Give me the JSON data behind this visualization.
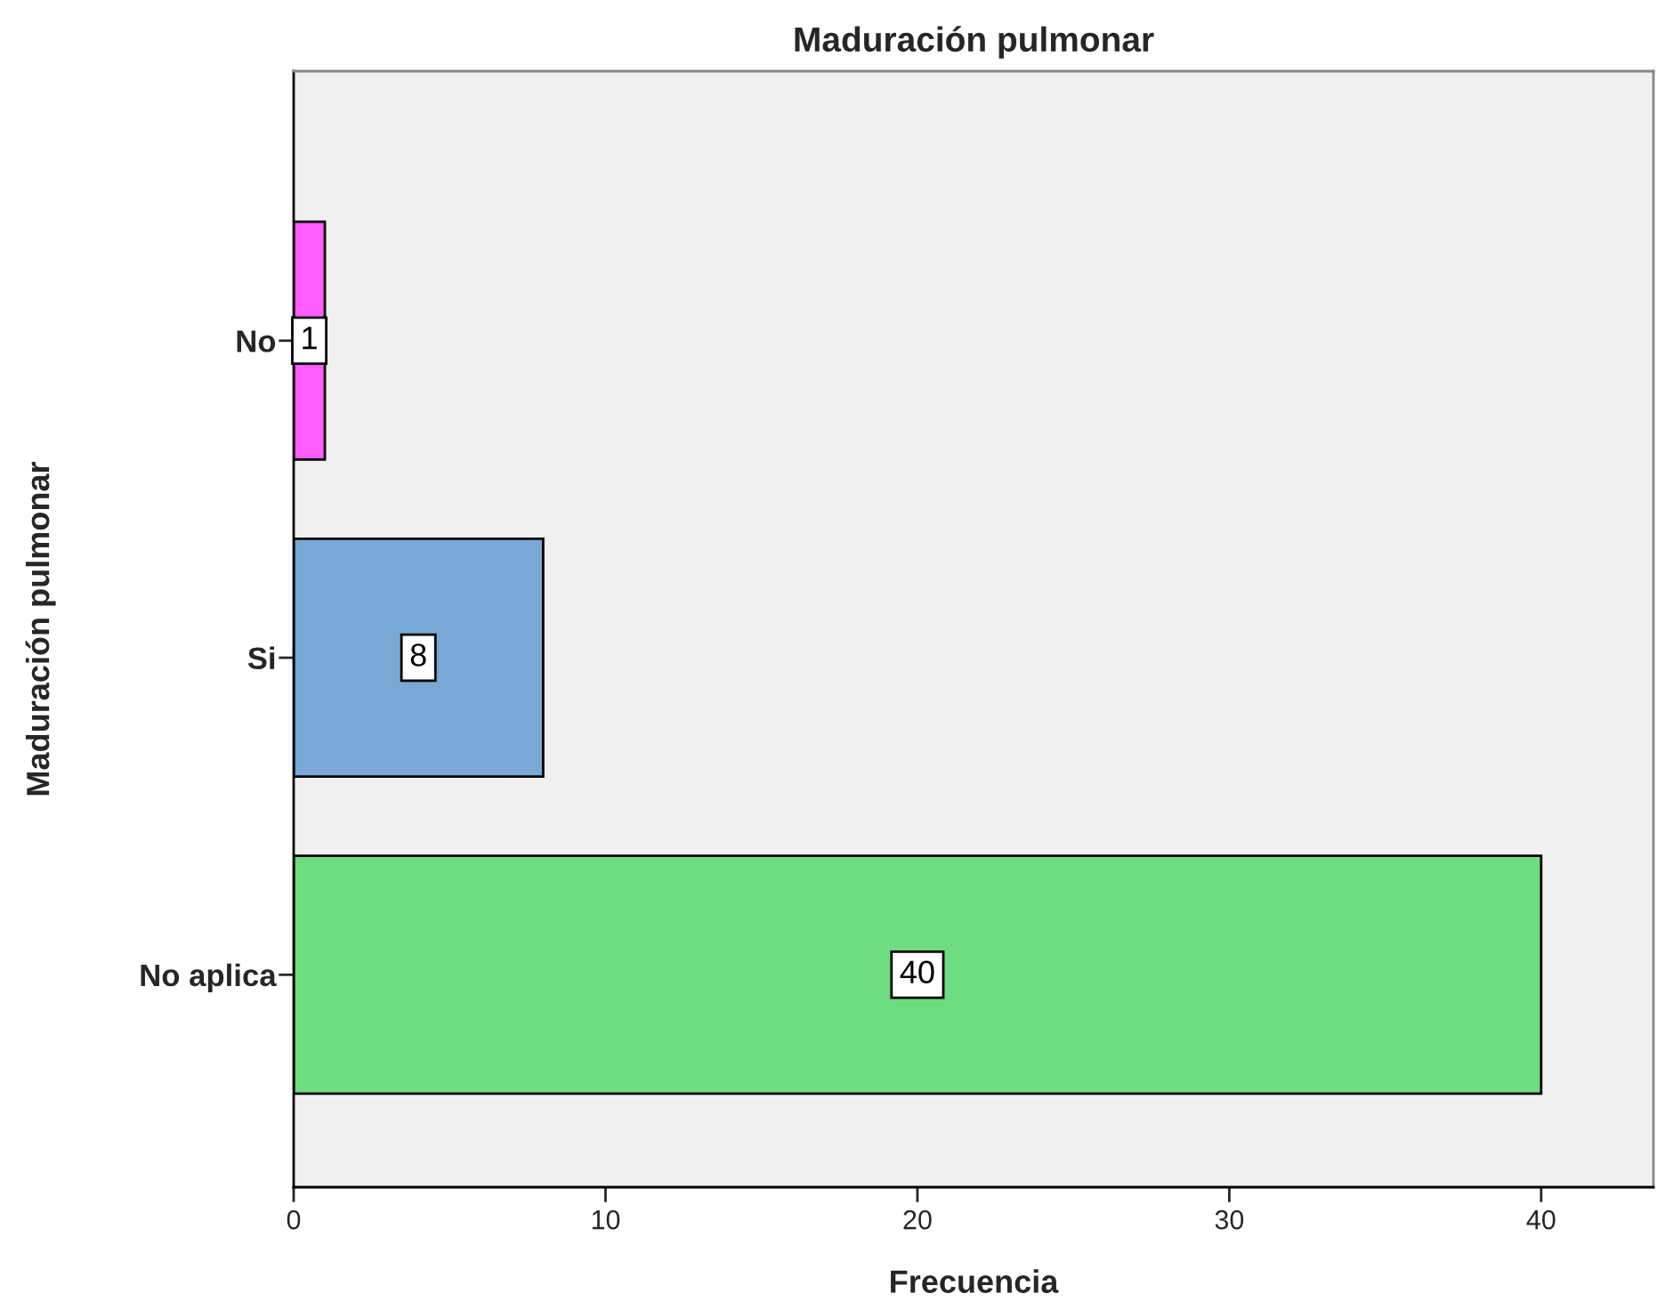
{
  "chart_data": {
    "type": "bar",
    "orientation": "horizontal",
    "title": "Maduración pulmonar",
    "xlabel": "Frecuencia",
    "ylabel": "Maduración pulmonar",
    "categories": [
      "No",
      "Si",
      "No aplica"
    ],
    "values": [
      1,
      8,
      40
    ],
    "colors": [
      "#ff5cff",
      "#79a8d6",
      "#6fdc82"
    ],
    "xlim": [
      0,
      43.6
    ],
    "xticks": [
      0,
      10,
      20,
      30,
      40
    ],
    "data_labels": true,
    "grid": false
  }
}
